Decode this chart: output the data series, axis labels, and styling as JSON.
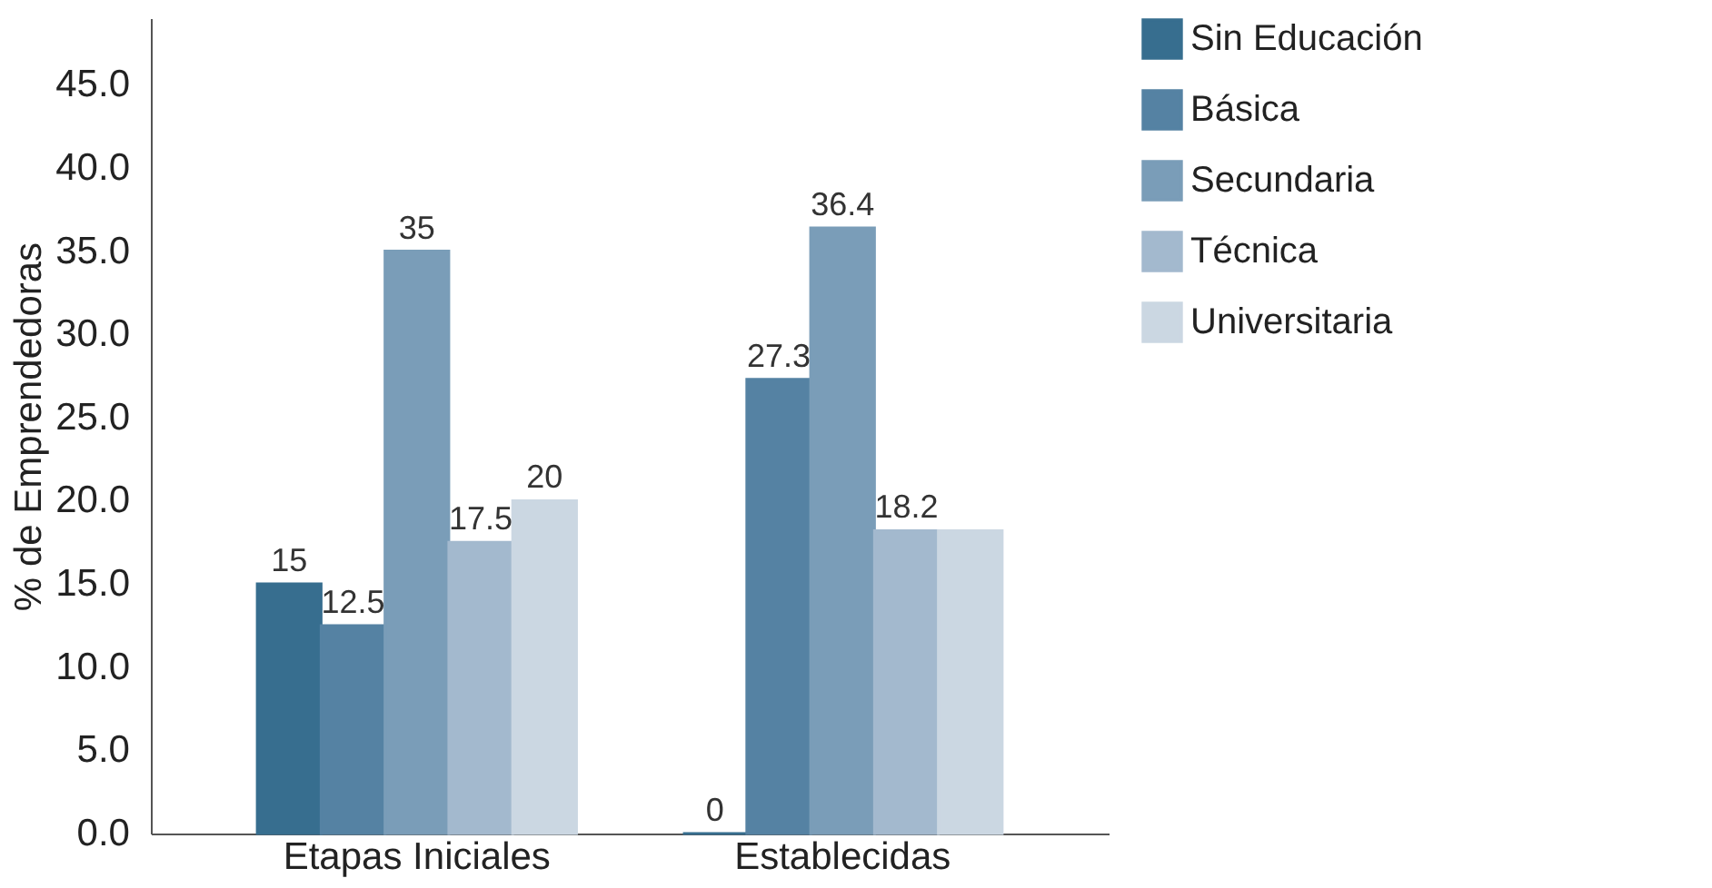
{
  "chart_data": {
    "type": "bar",
    "ylabel": "% de Emprendedoras",
    "categories": [
      "Etapas Iniciales",
      "Establecidas"
    ],
    "series": [
      {
        "name": "Sin Educación",
        "color": "#376e8f",
        "values": [
          15,
          0
        ],
        "value_labels": [
          "15",
          "0"
        ]
      },
      {
        "name": "Básica",
        "color": "#5582a3",
        "values": [
          12.5,
          27.3
        ],
        "value_labels": [
          "12.5",
          "27.3"
        ]
      },
      {
        "name": "Secundaria",
        "color": "#7a9db8",
        "values": [
          35,
          36.4
        ],
        "value_labels": [
          "35",
          "36.4"
        ]
      },
      {
        "name": "Técnica",
        "color": "#a3b9ce",
        "values": [
          17.5,
          18.2
        ],
        "value_labels": [
          "17.5",
          "18.2"
        ]
      },
      {
        "name": "Universitaria",
        "color": "#cbd7e2",
        "values": [
          20,
          18.2
        ],
        "value_labels": [
          "20",
          null
        ]
      }
    ],
    "ylim": [
      0,
      49
    ],
    "yticks": [
      {
        "value": 0,
        "label": "0.0"
      },
      {
        "value": 5,
        "label": "5.0"
      },
      {
        "value": 10,
        "label": "10.0"
      },
      {
        "value": 15,
        "label": "15.0"
      },
      {
        "value": 20,
        "label": "20.0"
      },
      {
        "value": 25,
        "label": "25.0"
      },
      {
        "value": 30,
        "label": "30.0"
      },
      {
        "value": 35,
        "label": "35.0"
      },
      {
        "value": 40,
        "label": "40.0"
      },
      {
        "value": 45,
        "label": "45.0"
      }
    ],
    "grid": false,
    "legend": "top right"
  }
}
